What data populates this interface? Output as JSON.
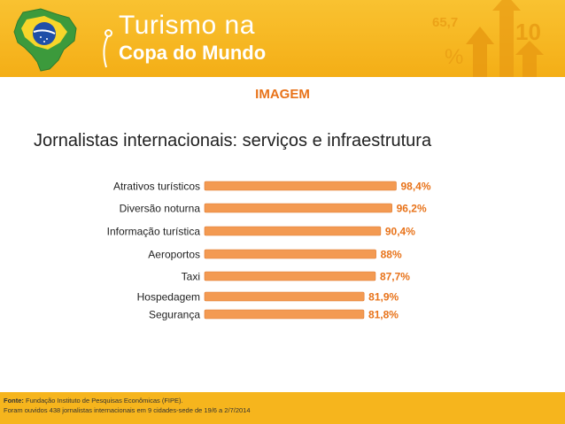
{
  "header": {
    "brand_line1": "Turismo na",
    "brand_line2": "Copa do Mundo",
    "deco_number1": "65,7",
    "deco_number2": "10",
    "deco_symbol": "%",
    "colors": {
      "header_bg": "#f5b11c",
      "arrow": "#e89a12"
    }
  },
  "section_label": "IMAGEM",
  "chart_data": {
    "type": "bar",
    "orientation": "horizontal",
    "title": "Jornalistas internacionais: serviços e infraestrutura",
    "categories": [
      "Atrativos turísticos",
      "Diversão noturna",
      "Informação turística",
      "Aeroportos",
      "Taxi",
      "Hospedagem",
      "Segurança"
    ],
    "values": [
      98.4,
      96.2,
      90.4,
      88,
      87.7,
      81.9,
      81.8
    ],
    "value_labels": [
      "98,4%",
      "96,2%",
      "90,4%",
      "88%",
      "87,7%",
      "81,9%",
      "81,8%"
    ],
    "xlim": [
      0,
      100
    ],
    "grid": false,
    "legend": "none",
    "bar_color": "#f39a52",
    "label_color": "#e8731a"
  },
  "footer": {
    "source_label": "Fonte:",
    "source_text": " Fundação Instituto de Pesquisas Econômicas (FIPE).",
    "note": "Foram ouvidos 438 jornalistas internacionais em 9 cidades-sede de 19/6 a 2/7/2014"
  }
}
